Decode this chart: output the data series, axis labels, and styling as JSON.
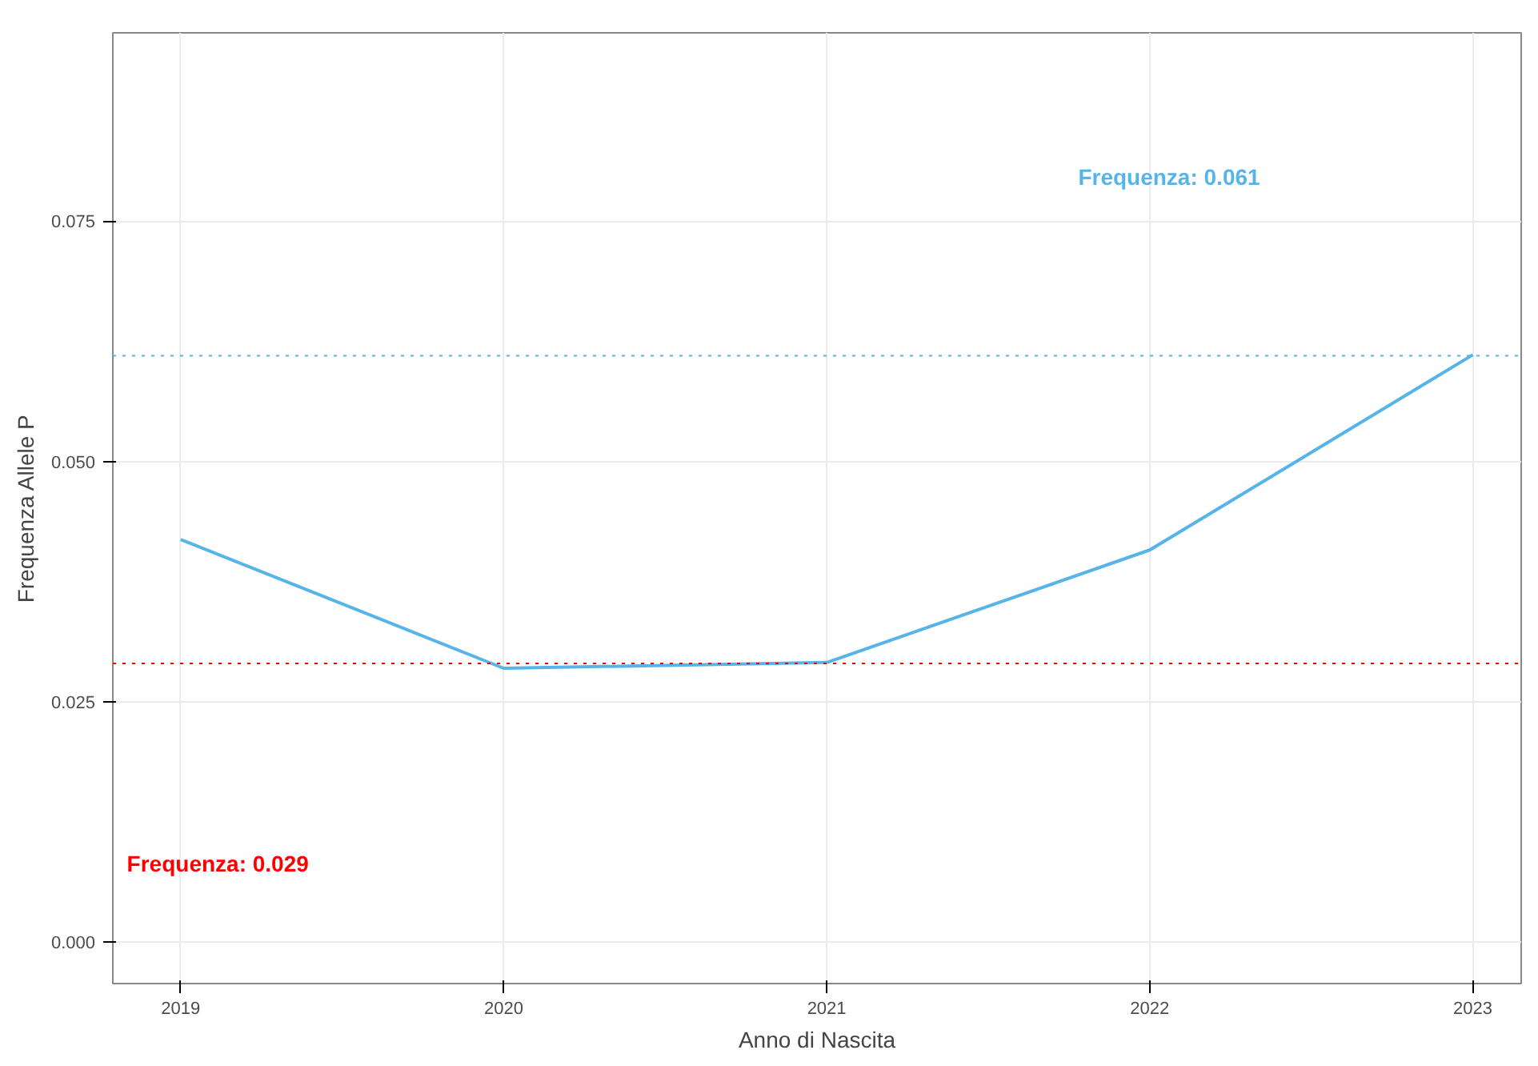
{
  "chart_data": {
    "type": "line",
    "xlabel": "Anno di Nascita",
    "ylabel": "Frequenza Allele P",
    "x": [
      2019,
      2020,
      2021,
      2022,
      2023
    ],
    "series": [
      {
        "color": "#56b4e9",
        "values": [
          0.0419,
          0.0285,
          0.0291,
          0.0408,
          0.0611
        ]
      }
    ],
    "xlim": [
      2018.79,
      2023.15
    ],
    "ylim": [
      -0.0043,
      0.0946
    ],
    "xticks": [
      2019,
      2020,
      2021,
      2022,
      2023
    ],
    "yticks": [
      {
        "value": 0,
        "label": "0.000"
      },
      {
        "value": 0.025,
        "label": "0.025"
      },
      {
        "value": 0.05,
        "label": "0.050"
      },
      {
        "value": 0.075,
        "label": "0.075"
      }
    ],
    "ref_lines": [
      {
        "axis": "y",
        "value": 0.029,
        "color": "#ff0000",
        "line_style": "dotted",
        "label": "Frequenza: 0.029"
      },
      {
        "axis": "y",
        "value": 0.061,
        "color": "#56b4e9",
        "line_style": "dotted",
        "label": "Frequenza: 0.061"
      }
    ],
    "grid": true
  }
}
